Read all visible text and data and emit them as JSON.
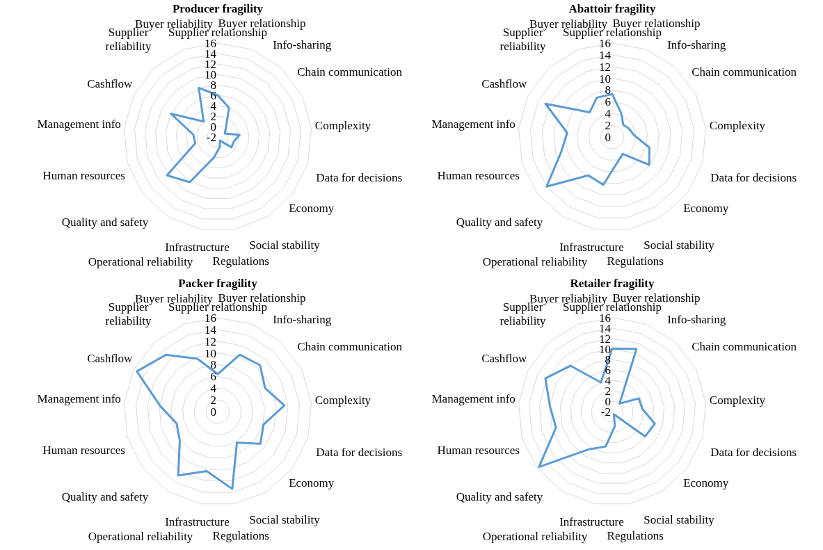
{
  "chart_data": [
    {
      "type": "radar",
      "title": "Producer fragility",
      "categories": [
        "Supplier relationship",
        "Buyer relationship",
        "Info-sharing",
        "Chain communication",
        "Complexity",
        "Data for decisions",
        "Economy",
        "Social stability",
        "Regulations",
        "Infrastructure",
        "Operational reliability",
        "Quality and safety",
        "Human resources",
        "Management info",
        "Cashflow",
        "Supplier reliability",
        "Buyer reliability"
      ],
      "series": [
        {
          "color": "#5b9bd5",
          "values": [
            6,
            4,
            0.3,
            -0.5,
            2.2,
            1.2,
            1.3,
            -1.2,
            0,
            2,
            8.2,
            10.2,
            2.5,
            2.7,
            8,
            2,
            8.1
          ]
        }
      ],
      "ylim": [
        -2,
        16
      ],
      "yticks": [
        -2,
        0,
        2,
        4,
        6,
        8,
        10,
        12,
        14,
        16
      ],
      "grid": true
    },
    {
      "type": "radar",
      "title": "Abattoir fragility",
      "categories": [
        "Supplier relationship",
        "Buyer relationship",
        "Info-sharing",
        "Chain communication",
        "Complexity",
        "Data for decisions",
        "Economy",
        "Social stability",
        "Regulations",
        "Infrastructure",
        "Operational reliability",
        "Quality and safety",
        "Human resources",
        "Management info",
        "Cashflow",
        "Supplier reliability",
        "Buyer reliability"
      ],
      "series": [
        {
          "color": "#5b9bd5",
          "values": [
            7.3,
            4.3,
            2.8,
            3.2,
            3.7,
            6.6,
            7.9,
            3.4,
            4.5,
            8.3,
            7.7,
            14,
            9,
            7.7,
            12.7,
            5.7,
            7.2
          ]
        }
      ],
      "ylim": [
        0,
        16
      ],
      "yticks": [
        0,
        2,
        4,
        6,
        8,
        10,
        12,
        14,
        16
      ],
      "grid": true
    },
    {
      "type": "radar",
      "title": "Packer fragility",
      "categories": [
        "Supplier relationship",
        "Buyer relationship",
        "Info-sharing",
        "Chain communication",
        "Complexity",
        "Data for decisions",
        "Economy",
        "Social stability",
        "Regulations",
        "Infrastructure",
        "Operational reliability",
        "Quality and safety",
        "Human resources",
        "Management info",
        "Cashflow",
        "Supplier reliability",
        "Buyer reliability"
      ],
      "series": [
        {
          "color": "#5b9bd5",
          "values": [
            6.4,
            10.4,
            10.7,
            9,
            11.4,
            8.1,
            9.1,
            6.2,
            13.4,
            10.3,
            12.8,
            8.1,
            7.3,
            9.8,
            15.4,
            13.1,
            9.7
          ]
        }
      ],
      "ylim": [
        0,
        16
      ],
      "yticks": [
        0,
        2,
        4,
        6,
        8,
        10,
        12,
        14,
        16
      ],
      "grid": true
    },
    {
      "type": "radar",
      "title": "Retailer fragility",
      "categories": [
        "Supplier relationship",
        "Buyer relationship",
        "Info-sharing",
        "Chain communication",
        "Complexity",
        "Data for decisions",
        "Economy",
        "Social stability",
        "Regulations",
        "Infrastructure",
        "Operational reliability",
        "Quality and safety",
        "Human resources",
        "Management info",
        "Cashflow",
        "Supplier reliability",
        "Buyer reliability"
      ],
      "series": [
        {
          "color": "#5b9bd5",
          "values": [
            10.1,
            10.9,
            0.1,
            3.7,
            3.8,
            6.5,
            5.9,
            -1.4,
            0.8,
            4.8,
            6.5,
            15.6,
            9.2,
            10,
            12.3,
            9.9,
            4
          ]
        }
      ],
      "ylim": [
        -2,
        16
      ],
      "yticks": [
        -2,
        0,
        2,
        4,
        6,
        8,
        10,
        12,
        14,
        16
      ],
      "grid": true
    }
  ]
}
